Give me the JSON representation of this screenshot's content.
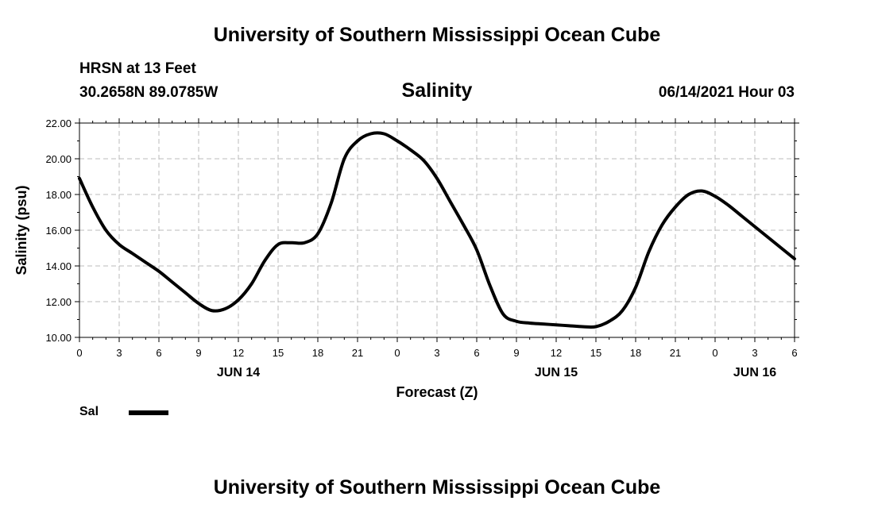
{
  "header": {
    "title": "University of Southern Mississippi Ocean Cube",
    "station": "HRSN at 13 Feet",
    "coordinates": "30.2658N  89.0785W",
    "variable": "Salinity",
    "datetime": "06/14/2021 Hour 03"
  },
  "footer": {
    "title": "University of Southern Mississippi Ocean Cube"
  },
  "legend": {
    "label": "Sal",
    "color": "#000000"
  },
  "chart_data": {
    "type": "line",
    "title": "Salinity",
    "xlabel": "Forecast (Z)",
    "ylabel": "Salinity (psu)",
    "xlim": [
      0,
      54
    ],
    "ylim": [
      10,
      22
    ],
    "grid": true,
    "x_ticks": [
      0,
      3,
      6,
      9,
      12,
      15,
      18,
      21,
      24,
      27,
      30,
      33,
      36,
      39,
      42,
      45,
      48,
      51,
      54
    ],
    "x_tick_labels": [
      "0",
      "3",
      "6",
      "9",
      "12",
      "15",
      "18",
      "21",
      "0",
      "3",
      "6",
      "9",
      "12",
      "15",
      "18",
      "21",
      "0",
      "3",
      "6"
    ],
    "y_ticks": [
      10,
      12,
      14,
      16,
      18,
      20,
      22
    ],
    "y_tick_labels": [
      "10.00",
      "12.00",
      "14.00",
      "16.00",
      "18.00",
      "20.00",
      "22.00"
    ],
    "date_labels": [
      {
        "x": 12,
        "text": "JUN 14"
      },
      {
        "x": 36,
        "text": "JUN 15"
      },
      {
        "x": 51,
        "text": "JUN 16"
      }
    ],
    "series": [
      {
        "name": "Sal",
        "color": "#000000",
        "x": [
          0,
          1,
          2,
          3,
          4,
          5,
          6,
          7,
          8,
          9,
          10,
          11,
          12,
          13,
          14,
          15,
          16,
          17,
          18,
          19,
          20,
          21,
          22,
          23,
          24,
          25,
          26,
          27,
          28,
          29,
          30,
          31,
          32,
          33,
          34,
          35,
          36,
          37,
          38,
          39,
          40,
          41,
          42,
          43,
          44,
          45,
          46,
          47,
          48,
          49,
          50,
          51,
          52,
          53,
          54
        ],
        "y": [
          18.9,
          17.3,
          16.0,
          15.2,
          14.7,
          14.2,
          13.7,
          13.1,
          12.5,
          11.9,
          11.5,
          11.6,
          12.1,
          13.0,
          14.3,
          15.2,
          15.3,
          15.3,
          15.8,
          17.5,
          20.0,
          21.0,
          21.4,
          21.4,
          21.0,
          20.5,
          19.9,
          18.9,
          17.6,
          16.3,
          14.9,
          12.9,
          11.3,
          10.9,
          10.8,
          10.75,
          10.7,
          10.65,
          10.6,
          10.6,
          10.9,
          11.5,
          12.8,
          14.8,
          16.3,
          17.3,
          18.0,
          18.2,
          17.9,
          17.4,
          16.8,
          16.2,
          15.6,
          15.0,
          14.4
        ]
      }
    ]
  }
}
